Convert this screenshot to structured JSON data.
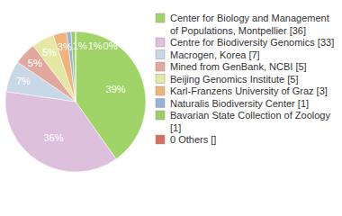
{
  "chart_data": {
    "type": "pie",
    "categories": [
      "Center for Biology and Management of Populations, Montpellier [36]",
      "Centre for Biodiversity Genomics [33]",
      "Macrogen, Korea [7]",
      "Mined from GenBank, NCBI [5]",
      "Beijing Genomics Institute [5]",
      "Karl-Franzens University of Graz [3]",
      "Naturalis Biodiversity Center [1]",
      "Bavarian State Collection of Zoology [1]",
      "0 Others []"
    ],
    "values": [
      39,
      36,
      7,
      5,
      5,
      3,
      1,
      1,
      0
    ],
    "value_labels": [
      "39%",
      "36%",
      "7%",
      "5%",
      "5%",
      "3%",
      "1%",
      "1%",
      "0%"
    ],
    "colors": [
      "#a0d468",
      "#dcc0dc",
      "#c8d8e6",
      "#e2a89e",
      "#e4e8a4",
      "#f0b47a",
      "#94b4dc",
      "#9ccc64",
      "#d4705c"
    ],
    "data_labels": true,
    "legend": "right"
  }
}
